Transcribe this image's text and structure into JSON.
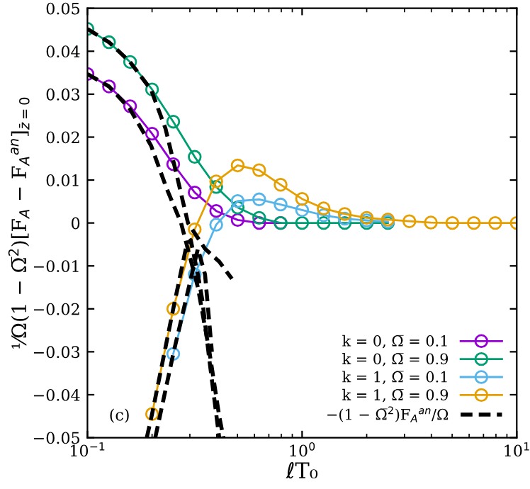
{
  "chart_data": {
    "type": "line",
    "xlabel": "ℓT₀",
    "ylabel": "¹⁄Ω(1 − Ω̅$^{2}$)[F$_{A}$ − F$_{A}$$^{an}$]$_{z̄=0}$",
    "log": "x",
    "xlim": [
      0.1,
      10
    ],
    "ylim": [
      -0.05,
      0.05
    ],
    "xticks": [
      {
        "value": 0.1,
        "label": "10$^{−1}$"
      },
      {
        "value": 1,
        "label": "10$^{0}$"
      },
      {
        "value": 10,
        "label": "10$^{1}$"
      }
    ],
    "yticks": [
      {
        "value": -0.05,
        "label": "−0.05"
      },
      {
        "value": -0.04,
        "label": "−0.04"
      },
      {
        "value": -0.03,
        "label": "−0.03"
      },
      {
        "value": -0.02,
        "label": "−0.02"
      },
      {
        "value": -0.01,
        "label": "−0.01"
      },
      0,
      0.01,
      0.02,
      0.03,
      0.04,
      0.05
    ],
    "grid": false,
    "legend": "bottom right",
    "marker": "circle",
    "line_style": "solid",
    "annotations": [
      "(c)"
    ],
    "series": [
      {
        "name": "k = 0, Ω̅ = 0.1",
        "color": "#9400d3",
        "x": [
          0.1,
          0.126,
          0.158,
          0.2,
          0.251,
          0.316,
          0.398,
          0.501,
          0.631,
          0.794
        ],
        "values": [
          0.0347,
          0.0318,
          0.0272,
          0.0208,
          0.0137,
          0.0071,
          0.0028,
          0.0007,
          0,
          0
        ]
      },
      {
        "name": "k = 0, Ω̅ = 0.9",
        "color": "#009e73",
        "x": [
          0.1,
          0.126,
          0.158,
          0.2,
          0.251,
          0.316,
          0.398,
          0.501,
          0.631,
          0.794,
          1,
          1.26,
          1.58,
          2,
          2.51
        ],
        "values": [
          0.0452,
          0.0421,
          0.0375,
          0.0311,
          0.0236,
          0.0154,
          0.0084,
          0.0036,
          0.0012,
          0,
          0,
          0,
          0,
          0,
          0
        ]
      },
      {
        "name": "k = 1, Ω̅ = 0.1",
        "color": "#56b4e9",
        "x": [
          0.251,
          0.316,
          0.398,
          0.501,
          0.631,
          0.794,
          1,
          1.26,
          1.58,
          2,
          2.51
        ],
        "values": [
          -0.0305,
          -0.012,
          -0.0004,
          0.0051,
          0.0055,
          0.0043,
          0.003,
          0.0018,
          0.001,
          0.0006,
          0.0003
        ]
      },
      {
        "name": "k = 1, Ω̅ = 0.9",
        "color": "#e69f00",
        "x": [
          0.2,
          0.251,
          0.316,
          0.398,
          0.501,
          0.631,
          0.794,
          1,
          1.26,
          1.58,
          2,
          2.51,
          3.16,
          3.98,
          5.01,
          6.31,
          7.94,
          10
        ],
        "values": [
          -0.0445,
          -0.02,
          -0.0015,
          0.0097,
          0.0134,
          0.0123,
          0.0089,
          0.0056,
          0.0034,
          0.0021,
          0.0012,
          0.0008,
          0.0004,
          0.0001,
          0,
          0,
          0,
          0
        ]
      },
      {
        "name": "−(1 − Ω̅$^{2}$)F$_{A}$$^{an}$/Ω",
        "color": "#000000",
        "marker": "none",
        "line_style": "dashed",
        "x": [
          0.1,
          0.126,
          0.158,
          0.198,
          0.234,
          0.273,
          0.327,
          0.37,
          0.411,
          0.43
        ],
        "values": [
          0.0347,
          0.0318,
          0.0265,
          0.018,
          0.008,
          0,
          -0.015,
          -0.03,
          -0.045,
          -0.05
        ]
      },
      {
        "color": "#000000",
        "marker": "none",
        "line_style": "dashed",
        "x": [
          0.1,
          0.126,
          0.158,
          0.198,
          0.231,
          0.261,
          0.294,
          0.353,
          0.411,
          0.471
        ],
        "values": [
          0.0452,
          0.0421,
          0.0375,
          0.031,
          0.022,
          0.011,
          0,
          -0.006,
          -0.009,
          -0.013
        ]
      },
      {
        "color": "#000000",
        "marker": "none",
        "line_style": "dashed",
        "x": [
          0.189,
          0.2,
          0.251,
          0.29,
          0.303,
          0.327,
          0.343,
          0.37,
          0.411
        ],
        "values": [
          -0.05,
          -0.0445,
          -0.02,
          -0.005,
          -0.004,
          -0.012,
          -0.018,
          -0.032,
          -0.05
        ]
      },
      {
        "color": "#000000",
        "marker": "none",
        "line_style": "dashed",
        "x": [
          0.207,
          0.251,
          0.303,
          0.327,
          0.353,
          0.38
        ],
        "values": [
          -0.05,
          -0.0305,
          -0.013,
          -0.006,
          -0.012,
          -0.03
        ]
      }
    ]
  }
}
